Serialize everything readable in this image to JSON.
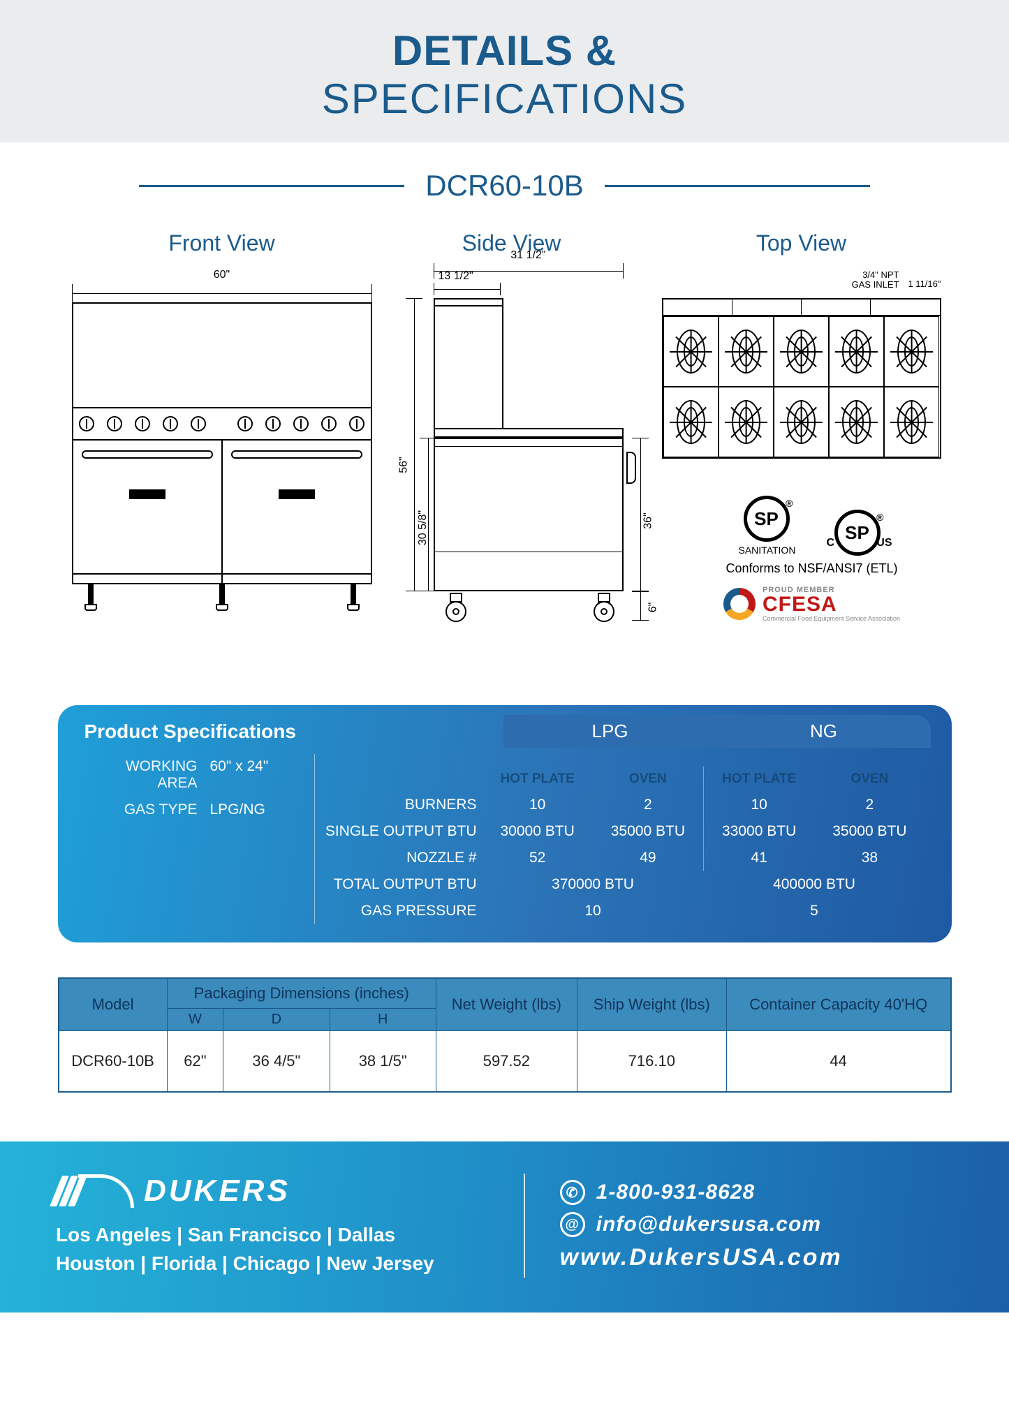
{
  "header": {
    "title_strong": "DETAILS &",
    "title_light": "SPECIFICATIONS"
  },
  "model": "DCR60-10B",
  "views": {
    "front": {
      "label": "Front View",
      "width": "60\""
    },
    "side": {
      "label": "Side View",
      "depth_full": "31 1/2\"",
      "depth_shelf": "13 1/2\"",
      "height_full": "56\"",
      "height_oven": "30 5/8\"",
      "height_work": "36\"",
      "leg_height": "6\""
    },
    "top": {
      "label": "Top View",
      "gas_inlet_line1": "3/4\" NPT",
      "gas_inlet_line2": "GAS INLET",
      "edge_dim": "1 11/16\""
    }
  },
  "cert": {
    "csa": "SP",
    "sanitation": "SANITATION",
    "c": "C",
    "us": "US",
    "nsf": "Conforms to NSF/ANSI7 (ETL)",
    "cfesa_pm": "PROUD MEMBER",
    "cfesa": "CFESA",
    "cfesa_sub": "Commercial Food Equipment Service Association"
  },
  "spec": {
    "title": "Product Specifications",
    "working_area_lbl": "WORKING AREA",
    "working_area": "60\" x 24\"",
    "gas_type_lbl": "GAS TYPE",
    "gas_type": "LPG/NG",
    "row_labels": {
      "burners": "BURNERS",
      "single_btu": "SINGLE OUTPUT BTU",
      "nozzle": "NOZZLE #",
      "total_btu": "TOTAL OUTPUT BTU",
      "gas_pressure": "GAS PRESSURE"
    },
    "gas_headers": {
      "lpg": "LPG",
      "ng": "NG"
    },
    "sub_headers": {
      "hot_plate": "HOT PLATE",
      "oven": "OVEN"
    },
    "lpg": {
      "hot_plate": {
        "burners": "10",
        "single_btu": "30000 BTU",
        "nozzle": "52"
      },
      "oven": {
        "burners": "2",
        "single_btu": "35000 BTU",
        "nozzle": "49"
      },
      "total_btu": "370000 BTU",
      "gas_pressure": "10"
    },
    "ng": {
      "hot_plate": {
        "burners": "10",
        "single_btu": "33000 BTU",
        "nozzle": "41"
      },
      "oven": {
        "burners": "2",
        "single_btu": "35000 BTU",
        "nozzle": "38"
      },
      "total_btu": "400000 BTU",
      "gas_pressure": "5"
    }
  },
  "table": {
    "headers": {
      "model": "Model",
      "pkg": "Packaging Dimensions (inches)",
      "w": "W",
      "d": "D",
      "h": "H",
      "net": "Net Weight (lbs)",
      "ship": "Ship Weight (lbs)",
      "container": "Container Capacity 40'HQ"
    },
    "row": {
      "model": "DCR60-10B",
      "w": "62\"",
      "d": "36 4/5\"",
      "h": "38 1/5\"",
      "net": "597.52",
      "ship": "716.10",
      "container": "44"
    }
  },
  "footer": {
    "brand": "DUKERS",
    "cities_line1": "Los Angeles | San Francisco | Dallas",
    "cities_line2": "Houston | Florida | Chicago | New Jersey",
    "phone": "1-800-931-8628",
    "email": "info@dukersusa.com",
    "www": "www.DukersUSA.com"
  },
  "colors": {
    "brand_blue": "#1b5b8c",
    "panel_grad_start": "#1f9fd8",
    "panel_grad_end": "#1e5aa3",
    "table_header": "#3b8bbd",
    "footer_grad_start": "#24b3d8",
    "footer_grad_end": "#1b5fa8",
    "cfesa_red": "#c01818"
  }
}
